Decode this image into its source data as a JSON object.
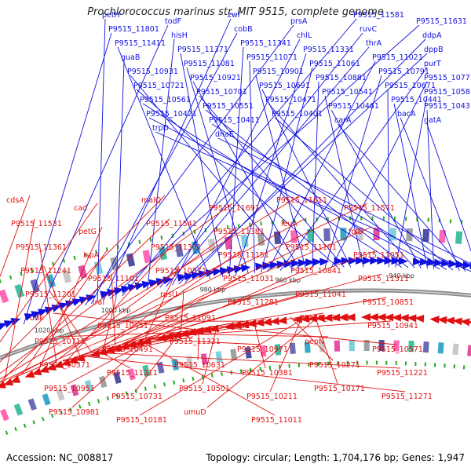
{
  "title": "Prochlorococcus marinus str. MIT 9515, complete genome",
  "accession": "Accession: NC_008817",
  "topology": "Topology: circular; Length: 1,704,176 bp; Genes: 1,947",
  "colors": {
    "forward": "#1010e0",
    "reverse": "#e01010",
    "backbone": "#8a8a8a",
    "green": "#22aa22"
  },
  "kbp_ticks": [
    {
      "label": "1060 kbp",
      "t": 0.02
    },
    {
      "label": "1040 kbp",
      "t": 0.1
    },
    {
      "label": "1020 kbp",
      "t": 0.21
    },
    {
      "label": "1000 kbp",
      "t": 0.32
    },
    {
      "label": "980 kbp",
      "t": 0.48
    },
    {
      "label": "960 kbp",
      "t": 0.6
    },
    {
      "label": "940 kbp",
      "t": 0.78
    },
    {
      "label": "920 kbp",
      "t": 0.93
    }
  ],
  "forward_labels": [
    {
      "text": "petH",
      "t": 0.32
    },
    {
      "text": "todF",
      "t": 0.22
    },
    {
      "text": "zwf",
      "t": 0.33
    },
    {
      "text": "prsA",
      "t": 0.3
    },
    {
      "text": "P9515_11581",
      "t": 0.36
    },
    {
      "text": "P9515_11631",
      "t": 0.34
    },
    {
      "text": "P9515_11801",
      "t": 0.2
    },
    {
      "text": "hisH",
      "t": 0.4
    },
    {
      "text": "cobB",
      "t": 0.31
    },
    {
      "text": "chlL",
      "t": 0.44
    },
    {
      "text": "ruvC",
      "t": 0.42
    },
    {
      "text": "ddpA",
      "t": 0.46
    },
    {
      "text": "P9515_11411",
      "t": 0.5
    },
    {
      "text": "P9515_11371",
      "t": 0.52
    },
    {
      "text": "P9515_11341",
      "t": 0.53
    },
    {
      "text": "P9515_11331",
      "t": 0.54
    },
    {
      "text": "thrA",
      "t": 0.43
    },
    {
      "text": "dppB",
      "t": 0.45
    },
    {
      "text": "guaB",
      "t": 0.35
    },
    {
      "text": "P9515_11081",
      "t": 0.56
    },
    {
      "text": "P9515_11071",
      "t": 0.57
    },
    {
      "text": "P9515_11061",
      "t": 0.58
    },
    {
      "text": "P9515_11021",
      "t": 0.59
    },
    {
      "text": "purT",
      "t": 0.61
    },
    {
      "text": "P9515_10931",
      "t": 0.63
    },
    {
      "text": "P9515_10921",
      "t": 0.64
    },
    {
      "text": "P9515_10901",
      "t": 0.65
    },
    {
      "text": "P9515_10881",
      "t": 0.66
    },
    {
      "text": "P9515_10791",
      "t": 0.68
    },
    {
      "text": "P9515_10771",
      "t": 0.69
    },
    {
      "text": "P9515_10721",
      "t": 0.7
    },
    {
      "text": "P9515_10701",
      "t": 0.71
    },
    {
      "text": "P9515_10691",
      "t": 0.72
    },
    {
      "text": "P9515_10541",
      "t": 0.74
    },
    {
      "text": "P9515_10671",
      "t": 0.78
    },
    {
      "text": "P9515_10581",
      "t": 0.79
    },
    {
      "text": "P9515_10561",
      "t": 0.8
    },
    {
      "text": "P9515_10551",
      "t": 0.81
    },
    {
      "text": "P9515_10471",
      "t": 0.82
    },
    {
      "text": "P9515_10461",
      "t": 0.83
    },
    {
      "text": "P9515_10441",
      "t": 0.84
    },
    {
      "text": "P9515_10431",
      "t": 0.85
    },
    {
      "text": "P9515_10421",
      "t": 0.86
    },
    {
      "text": "P9515_10411",
      "t": 0.87
    },
    {
      "text": "P9515_10401",
      "t": 0.88
    },
    {
      "text": "carA",
      "t": 0.9
    },
    {
      "text": "bacA",
      "t": 0.89
    },
    {
      "text": "gatA",
      "t": 0.92
    },
    {
      "text": "trpD",
      "t": 0.91
    },
    {
      "text": "dnaE",
      "t": 0.94
    }
  ],
  "reverse_labels": [
    {
      "text": "cdsA",
      "t": 0.05
    },
    {
      "text": "cad",
      "t": 0.06
    },
    {
      "text": "malQ",
      "t": 0.07
    },
    {
      "text": "P9515_11691",
      "t": 0.08
    },
    {
      "text": "P9515_11611",
      "t": 0.1
    },
    {
      "text": "P9515_11571",
      "t": 0.12
    },
    {
      "text": "P9515_11531",
      "t": 0.14
    },
    {
      "text": "petG",
      "t": 0.2
    },
    {
      "text": "P9515_11541",
      "t": 0.13
    },
    {
      "text": "P9515_11381",
      "t": 0.22
    },
    {
      "text": "leuA",
      "t": 0.15
    },
    {
      "text": "folD",
      "t": 0.16
    },
    {
      "text": "P9515_11361",
      "t": 0.23
    },
    {
      "text": "ispA",
      "t": 0.17
    },
    {
      "text": "P9515_11301",
      "t": 0.25
    },
    {
      "text": "P9515_11151",
      "t": 0.3
    },
    {
      "text": "P9515_11191",
      "t": 0.28
    },
    {
      "text": "P9515_11051",
      "t": 0.34
    },
    {
      "text": "P9515_11241",
      "t": 0.27
    },
    {
      "text": "P9515_11101",
      "t": 0.33
    },
    {
      "text": "P9515_10871",
      "t": 0.38
    },
    {
      "text": "P9515_11031",
      "t": 0.35
    },
    {
      "text": "P9515_10841",
      "t": 0.4
    },
    {
      "text": "P9515_11311",
      "t": 0.26
    },
    {
      "text": "P9515_11201",
      "t": 0.29
    },
    {
      "text": "iraI",
      "t": 0.31
    },
    {
      "text": "rpsU",
      "t": 0.44
    },
    {
      "text": "P9515_11281",
      "t": 0.26
    },
    {
      "text": "P9515_11041",
      "t": 0.36
    },
    {
      "text": "P9515_10851",
      "t": 0.41
    },
    {
      "text": "udk",
      "t": 0.46
    },
    {
      "text": "P9515_10451",
      "t": 0.55
    },
    {
      "text": "P9515_11091",
      "t": 0.34
    },
    {
      "text": "btuE",
      "t": 0.37
    },
    {
      "text": "P9515_11141",
      "t": 0.31
    },
    {
      "text": "P9515_10941",
      "t": 0.39
    },
    {
      "text": "P9515_10711",
      "t": 0.43
    },
    {
      "text": "P9515_10491",
      "t": 0.52
    },
    {
      "text": "P9515_11321",
      "t": 0.24
    },
    {
      "text": "P9515_10971",
      "t": 0.38
    },
    {
      "text": "pepN",
      "t": 0.42
    },
    {
      "text": "P9515_10571",
      "t": 0.49
    },
    {
      "text": "P9515_10371",
      "t": 0.58
    },
    {
      "text": "P9515_11211",
      "t": 0.3
    },
    {
      "text": "P9515_10631",
      "t": 0.47
    },
    {
      "text": "P9515_10381",
      "t": 0.56
    },
    {
      "text": "P9515_10271",
      "t": 0.62
    },
    {
      "text": "P9515_11221",
      "t": 0.29
    },
    {
      "text": "P9515_10951",
      "t": 0.4
    },
    {
      "text": "P9515_10731",
      "t": 0.44
    },
    {
      "text": "P9515_10501",
      "t": 0.5
    },
    {
      "text": "P9515_10211",
      "t": 0.64
    },
    {
      "text": "P9515_10171",
      "t": 0.66
    },
    {
      "text": "P9515_11271",
      "t": 0.27
    },
    {
      "text": "P9515_10981",
      "t": 0.39
    },
    {
      "text": "P9515_10181",
      "t": 0.65
    },
    {
      "text": "umuD",
      "t": 0.67
    },
    {
      "text": "P9515_11011",
      "t": 0.37
    }
  ]
}
